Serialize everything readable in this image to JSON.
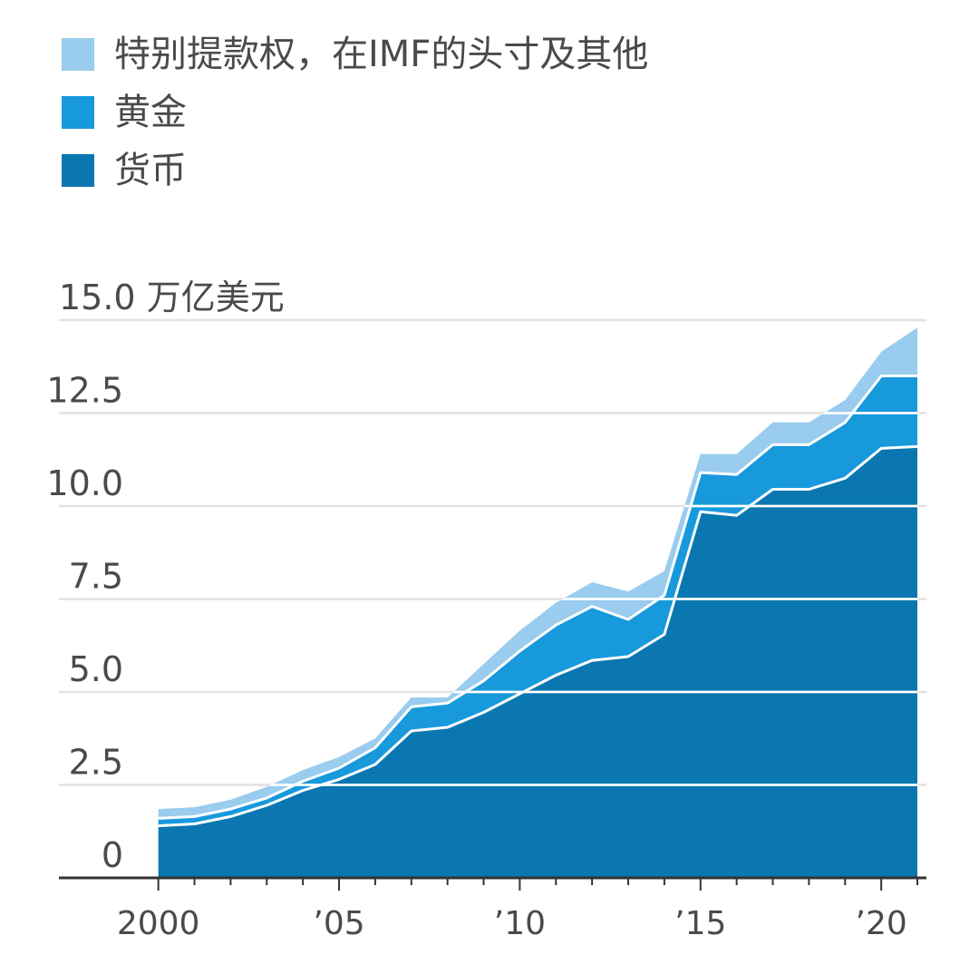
{
  "chart_data": {
    "type": "area",
    "stacked": true,
    "unit_label": "15.0 万亿美元",
    "x": [
      2000,
      2001,
      2002,
      2003,
      2004,
      2005,
      2006,
      2007,
      2008,
      2009,
      2010,
      2011,
      2012,
      2013,
      2014,
      2015,
      2016,
      2017,
      2018,
      2019,
      2020,
      2021
    ],
    "series": [
      {
        "name": "货币",
        "color": "#0a77b0",
        "values": [
          1.4,
          1.45,
          1.65,
          1.95,
          2.35,
          2.65,
          3.05,
          3.95,
          4.05,
          4.45,
          4.95,
          5.45,
          5.85,
          5.95,
          6.55,
          9.85,
          9.75,
          10.45,
          10.45,
          10.75,
          11.55,
          11.6
        ]
      },
      {
        "name": "黄金",
        "color": "#1799dc",
        "values": [
          0.2,
          0.2,
          0.2,
          0.2,
          0.25,
          0.3,
          0.45,
          0.65,
          0.65,
          0.85,
          1.15,
          1.35,
          1.45,
          1.0,
          1.05,
          1.05,
          1.1,
          1.2,
          1.2,
          1.5,
          1.95,
          1.9
        ]
      },
      {
        "name": "特别提款权，在IMF的头寸及其他",
        "color": "#99ccee",
        "values": [
          0.25,
          0.25,
          0.25,
          0.3,
          0.3,
          0.3,
          0.25,
          0.25,
          0.15,
          0.45,
          0.55,
          0.6,
          0.65,
          0.75,
          0.65,
          0.5,
          0.55,
          0.6,
          0.6,
          0.6,
          0.65,
          1.3
        ]
      }
    ],
    "y_ticks": [
      "15.0",
      "12.5",
      "10.0",
      "7.5",
      "5.0",
      "2.5",
      "0"
    ],
    "x_ticks": [
      {
        "year": 2000,
        "label": "2000"
      },
      {
        "year": 2005,
        "label": "’05"
      },
      {
        "year": 2010,
        "label": "’10"
      },
      {
        "year": 2015,
        "label": "’15"
      },
      {
        "year": 2020,
        "label": "’20"
      }
    ],
    "ylim": [
      0,
      15
    ],
    "xlim": [
      1997.25,
      2021.25
    ],
    "grid": true,
    "legend_position": "top-left"
  }
}
